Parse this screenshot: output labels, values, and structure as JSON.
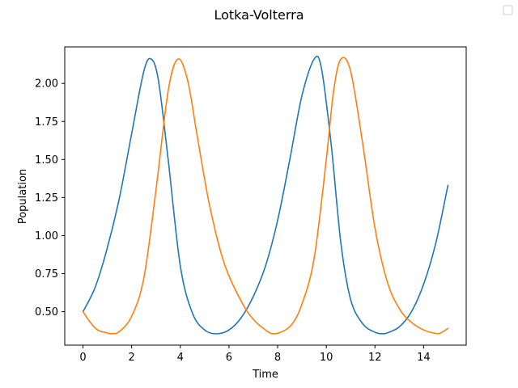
{
  "chart_data": {
    "type": "line",
    "title": "Lotka-Volterra",
    "xlabel": "Time",
    "ylabel": "Population",
    "xlim": [
      -0.75,
      15.75
    ],
    "ylim": [
      0.28,
      2.24
    ],
    "xticks": [
      0,
      2,
      4,
      6,
      8,
      10,
      12,
      14
    ],
    "xtick_labels": [
      "0",
      "2",
      "4",
      "6",
      "8",
      "10",
      "12",
      "14"
    ],
    "yticks": [
      0.5,
      0.75,
      1.0,
      1.25,
      1.5,
      1.75,
      2.0
    ],
    "ytick_labels": [
      "0.50",
      "0.75",
      "1.00",
      "1.25",
      "1.50",
      "1.75",
      "2.00"
    ],
    "grid": false,
    "legend": "top-right (empty)",
    "series": [
      {
        "color": "#1f77b4",
        "x": [
          0,
          0.5,
          1,
          1.5,
          2,
          2.5,
          2.8,
          3.1,
          3.5,
          4,
          4.5,
          5,
          5.5,
          6,
          6.5,
          7,
          7.5,
          8,
          8.5,
          9,
          9.5,
          9.8,
          10.2,
          10.6,
          11,
          11.5,
          12,
          12.3,
          12.5,
          13,
          13.5,
          14,
          14.5,
          15
        ],
        "y": [
          0.5,
          0.66,
          0.92,
          1.25,
          1.67,
          2.08,
          2.16,
          2.02,
          1.5,
          0.8,
          0.49,
          0.38,
          0.355,
          0.38,
          0.46,
          0.6,
          0.8,
          1.1,
          1.5,
          1.92,
          2.16,
          2.1,
          1.6,
          0.95,
          0.58,
          0.42,
          0.365,
          0.355,
          0.36,
          0.4,
          0.5,
          0.68,
          0.95,
          1.33
        ]
      },
      {
        "color": "#ff7f0e",
        "x": [
          0,
          0.3,
          0.6,
          1,
          1.2,
          1.5,
          2,
          2.5,
          3,
          3.5,
          3.9,
          4.3,
          4.7,
          5.2,
          5.8,
          6.5,
          7,
          7.5,
          7.8,
          8.2,
          8.6,
          9,
          9.5,
          10,
          10.3,
          10.6,
          11,
          11.5,
          12,
          12.5,
          13,
          13.5,
          14,
          14.5,
          14.7,
          15
        ],
        "y": [
          0.5,
          0.43,
          0.38,
          0.36,
          0.355,
          0.37,
          0.47,
          0.72,
          1.3,
          1.95,
          2.16,
          2.02,
          1.65,
          1.2,
          0.82,
          0.57,
          0.45,
          0.38,
          0.355,
          0.37,
          0.42,
          0.55,
          0.85,
          1.5,
          1.95,
          2.16,
          2.08,
          1.6,
          1.05,
          0.7,
          0.52,
          0.43,
          0.38,
          0.357,
          0.36,
          0.39
        ]
      }
    ]
  }
}
